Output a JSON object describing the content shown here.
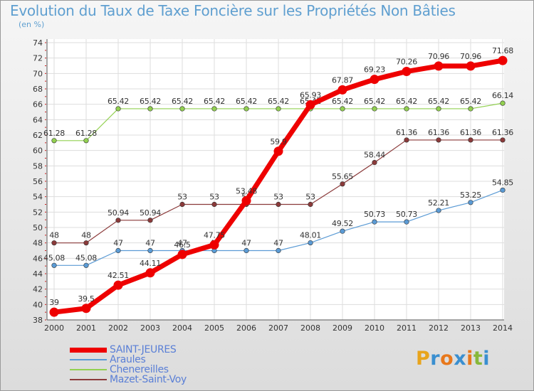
{
  "header": {
    "title": "Evolution du Taux de Taxe Foncière sur les Propriétés Non Bâties",
    "unit": "(en %)"
  },
  "logo": {
    "text": "Proxiti",
    "colors": [
      "#e8a41c",
      "#3a8fd0",
      "#e8781c",
      "#3a8fd0",
      "#e8781c",
      "#88b83a",
      "#3a8fd0"
    ]
  },
  "chart_data": {
    "type": "line",
    "title": "Evolution du Taux de Taxe Foncière sur les Propriétés Non Bâties",
    "ylabel": "(en %)",
    "xlabel": "",
    "grid": true,
    "ylim": [
      38,
      74
    ],
    "yticks": [
      38,
      40,
      42,
      44,
      46,
      48,
      50,
      52,
      54,
      56,
      58,
      60,
      62,
      64,
      66,
      68,
      70,
      72,
      74
    ],
    "x": [
      "2000",
      "2001",
      "2002",
      "2003",
      "2004",
      "2005",
      "2006",
      "2007",
      "2008",
      "2009",
      "2010",
      "2011",
      "2012",
      "2013",
      "2014"
    ],
    "legend_position": "bottom-left",
    "series": [
      {
        "name": "SAINT-JEURES",
        "color": "#ee0000",
        "emphasis": true,
        "values": [
          39,
          39.5,
          42.51,
          44.11,
          46.5,
          47.75,
          53.48,
          59.9,
          65.93,
          67.87,
          69.23,
          70.26,
          70.96,
          70.96,
          71.68
        ],
        "labels": [
          "39",
          "39.5",
          "42.51",
          "44.11",
          "46.5",
          "47.75",
          "53.48",
          "59.9",
          "65.93",
          "67.87",
          "69.23",
          "70.26",
          "70.96",
          "70.96",
          "71.68"
        ]
      },
      {
        "name": "Araules",
        "color": "#5b9bd5",
        "emphasis": false,
        "values": [
          45.08,
          45.08,
          47,
          47,
          47,
          47,
          47,
          47,
          48.01,
          49.52,
          50.73,
          50.73,
          52.21,
          53.25,
          54.85
        ],
        "labels": [
          "45.08",
          "45.08",
          "47",
          "47",
          "47",
          "47",
          "47",
          "47",
          "48.01",
          "49.52",
          "50.73",
          "50.73",
          "52.21",
          "53.25",
          "54.85"
        ]
      },
      {
        "name": "Chenereilles",
        "color": "#92d050",
        "emphasis": false,
        "values": [
          61.28,
          61.28,
          65.42,
          65.42,
          65.42,
          65.42,
          65.42,
          65.42,
          65.42,
          65.42,
          65.42,
          65.42,
          65.42,
          65.42,
          66.14
        ],
        "labels": [
          "61.28",
          "61.28",
          "65.42",
          "65.42",
          "65.42",
          "65.42",
          "65.42",
          "65.42",
          "65.42",
          "65.42",
          "65.42",
          "65.42",
          "65.42",
          "65.42",
          "66.14"
        ]
      },
      {
        "name": "Mazet-Saint-Voy",
        "color": "#8b3a3a",
        "emphasis": false,
        "values": [
          48,
          48,
          50.94,
          50.94,
          53,
          53,
          53,
          53,
          53,
          55.65,
          58.44,
          61.36,
          61.36,
          61.36,
          61.36
        ],
        "labels": [
          "48",
          "48",
          "50.94",
          "50.94",
          "53",
          "53",
          "53",
          "53",
          "53",
          "55.65",
          "58.44",
          "61.36",
          "61.36",
          "61.36",
          "61.36"
        ]
      }
    ]
  }
}
